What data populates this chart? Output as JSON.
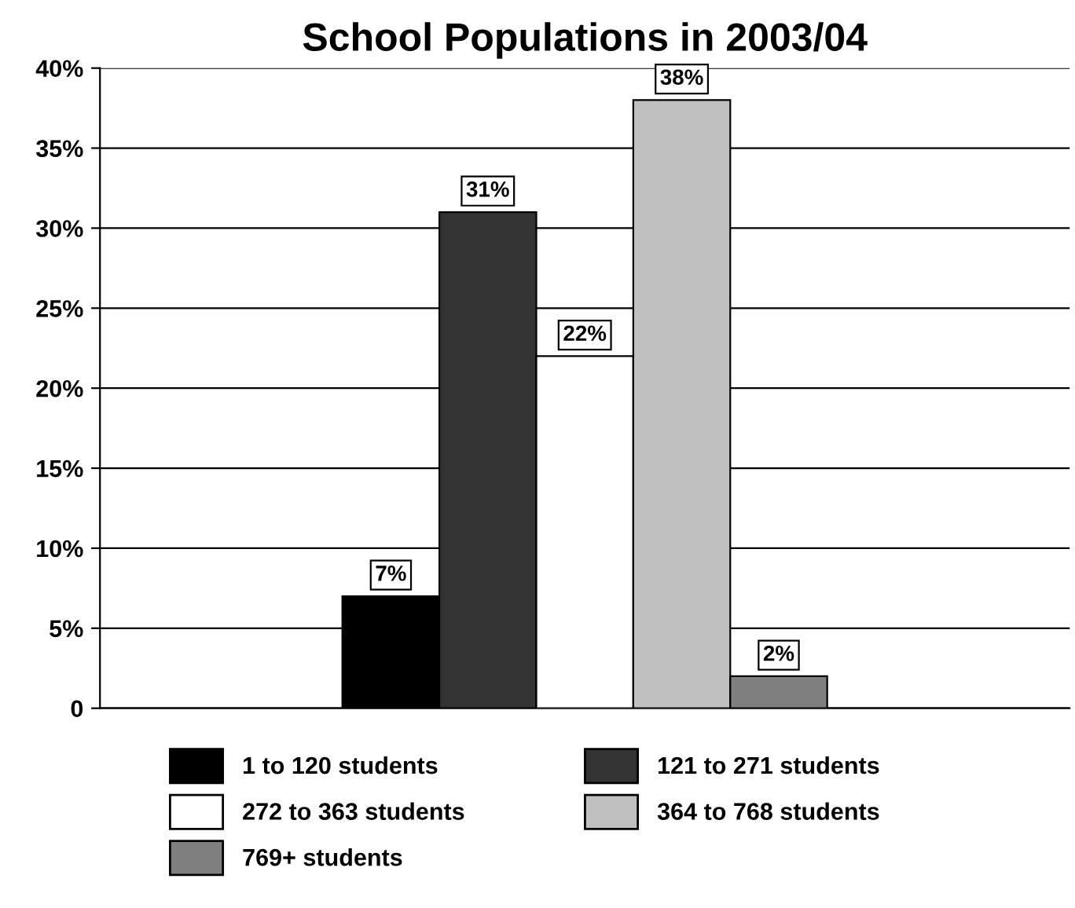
{
  "chart_data": {
    "type": "bar",
    "title": "School Populations in 2003/04",
    "categories": [
      null
    ],
    "series": [
      {
        "name": "1 to 120 students",
        "color": "#000000",
        "values": [
          7
        ],
        "value_labels": [
          "7%"
        ]
      },
      {
        "name": "121 to 271 students",
        "color": "#333333",
        "values": [
          31
        ],
        "value_labels": [
          "31%"
        ]
      },
      {
        "name": "272 to 363 students",
        "color": "#ffffff",
        "values": [
          22
        ],
        "value_labels": [
          "22%"
        ]
      },
      {
        "name": "364 to 768 students",
        "color": "#c0c0c0",
        "values": [
          38
        ],
        "value_labels": [
          "38%"
        ]
      },
      {
        "name": "769+ students",
        "color": "#7f7f7f",
        "values": [
          2
        ],
        "value_labels": [
          "2%"
        ]
      }
    ],
    "ylim": [
      0,
      40
    ],
    "yticks": [
      {
        "value": 0,
        "label": "0"
      },
      {
        "value": 5,
        "label": "5%"
      },
      {
        "value": 10,
        "label": "10%"
      },
      {
        "value": 15,
        "label": "15%"
      },
      {
        "value": 20,
        "label": "20%"
      },
      {
        "value": 25,
        "label": "25%"
      },
      {
        "value": 30,
        "label": "30%"
      },
      {
        "value": 35,
        "label": "35%"
      },
      {
        "value": 40,
        "label": "40%"
      }
    ],
    "grid": "y",
    "legend": "bottom",
    "tick_labels": "y"
  }
}
